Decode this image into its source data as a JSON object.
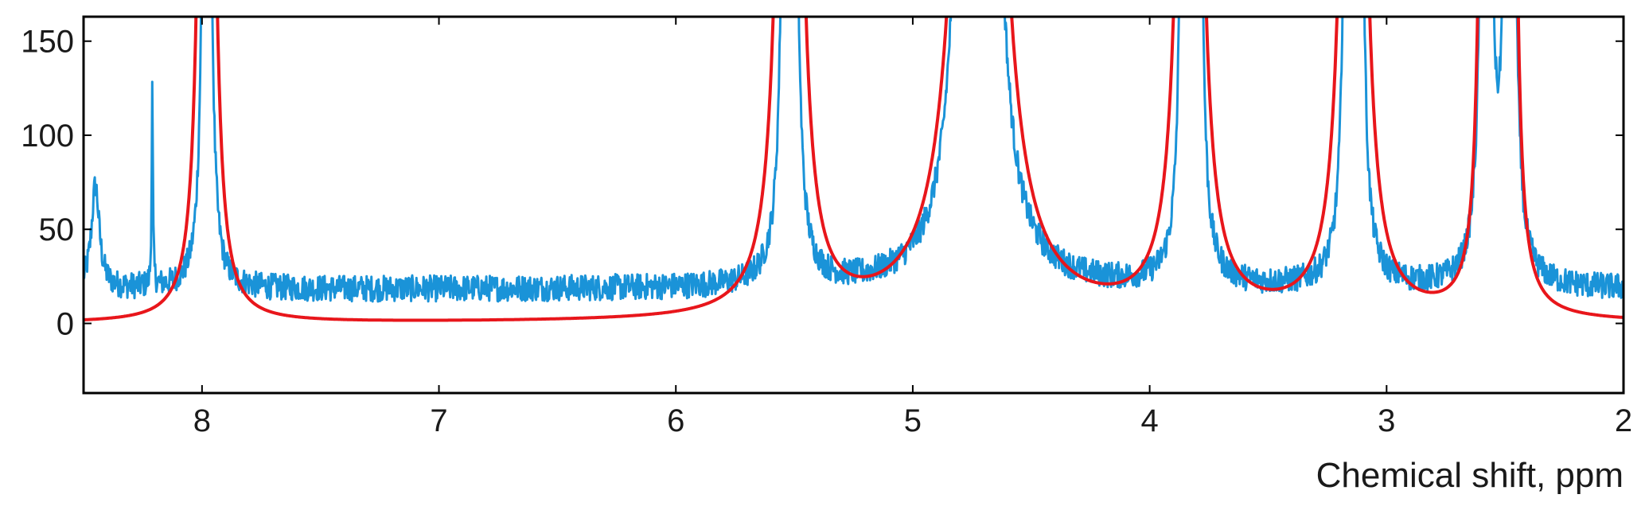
{
  "chart_data": {
    "type": "line",
    "title": "",
    "xlabel": "Chemical shift, ppm",
    "ylabel": "",
    "xlim": [
      8.5,
      2.0
    ],
    "ylim": [
      -37,
      163
    ],
    "x_reversed": true,
    "grid": false,
    "x_ticks": [
      8,
      7,
      6,
      5,
      4,
      3,
      2
    ],
    "x_tick_labels": [
      "8",
      "7",
      "6",
      "5",
      "4",
      "3",
      "2"
    ],
    "y_ticks": [
      0,
      50,
      100,
      150
    ],
    "y_tick_labels": [
      "0",
      "50",
      "100",
      "150"
    ],
    "colors": {
      "measured": "#1a93d8",
      "fit": "#e8161b",
      "axis": "#000000"
    },
    "series": [
      {
        "key": "measured",
        "noisy": true,
        "baseline": 18,
        "noise_amplitude": 7,
        "features": [
          {
            "center": 8.45,
            "height": 55,
            "width": 0.02
          },
          {
            "center": 8.21,
            "height": 105,
            "width": 0.003
          },
          {
            "center": 7.98,
            "height": 1000,
            "width": 0.01
          },
          {
            "center": 5.53,
            "height": 1000,
            "width": 0.01
          },
          {
            "center": 5.51,
            "height": 1000,
            "width": 0.01
          },
          {
            "center": 4.75,
            "height": 1000,
            "width": 0.03
          },
          {
            "center": 4.7,
            "height": 1000,
            "width": 0.03
          },
          {
            "center": 3.85,
            "height": 1000,
            "width": 0.01
          },
          {
            "center": 3.8,
            "height": 1000,
            "width": 0.01
          },
          {
            "center": 3.16,
            "height": 1000,
            "width": 0.01
          },
          {
            "center": 3.12,
            "height": 1000,
            "width": 0.01
          },
          {
            "center": 2.58,
            "height": 1000,
            "width": 0.012
          },
          {
            "center": 2.48,
            "height": 1000,
            "width": 0.012
          }
        ]
      },
      {
        "key": "fit",
        "noisy": false,
        "baseline": 0,
        "features": [
          {
            "center": 7.98,
            "height": 1000,
            "width": 0.02
          },
          {
            "center": 5.52,
            "height": 1000,
            "width": 0.03
          },
          {
            "center": 4.72,
            "height": 1000,
            "width": 0.06
          },
          {
            "center": 3.83,
            "height": 1000,
            "width": 0.03
          },
          {
            "center": 3.14,
            "height": 1000,
            "width": 0.03
          },
          {
            "center": 2.58,
            "height": 1000,
            "width": 0.015
          },
          {
            "center": 2.48,
            "height": 1000,
            "width": 0.015
          }
        ]
      }
    ]
  }
}
